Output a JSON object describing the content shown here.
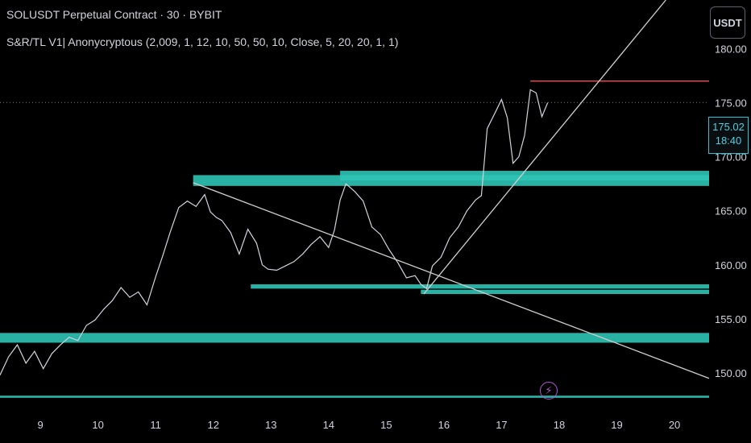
{
  "header": {
    "symbol_line": "SOLUSDT Perpetual Contract · 30 · BYBIT",
    "indicator_line": "S&R/TL V1| Anonycryptous (2,009, 1, 12, 10, 50, 50, 10, Close, 5, 20, 20, 1, 1)"
  },
  "toolbar": {
    "currency_label": "USDT"
  },
  "last_price": {
    "value": "175.02",
    "countdown": "18:40"
  },
  "event_marker": {
    "icon": "lightning-icon"
  },
  "colors": {
    "background": "#000000",
    "price_line": "#d1d4dc",
    "zone": "#2ec4b6",
    "resistance": "#e0525b",
    "trendline": "#cfcfcf",
    "marker": "#b658d8"
  },
  "chart_data": {
    "type": "line",
    "title": "SOLUSDT Perpetual Contract · 30 · BYBIT",
    "x_ticks": [
      {
        "day": 9,
        "label": "9"
      },
      {
        "day": 10,
        "label": "10"
      },
      {
        "day": 11,
        "label": "11"
      },
      {
        "day": 12,
        "label": "12"
      },
      {
        "day": 13,
        "label": "13"
      },
      {
        "day": 14,
        "label": "14"
      },
      {
        "day": 15,
        "label": "15"
      },
      {
        "day": 16,
        "label": "16"
      },
      {
        "day": 17,
        "label": "17"
      },
      {
        "day": 18,
        "label": "18"
      },
      {
        "day": 19,
        "label": "19"
      },
      {
        "day": 20,
        "label": "20"
      }
    ],
    "y_ticks": [
      "150.00",
      "155.00",
      "160.00",
      "165.00",
      "170.00",
      "175.00",
      "180.00"
    ],
    "xlim": [
      8.3,
      20.6
    ],
    "ylim": [
      146.5,
      184.5
    ],
    "series": [
      {
        "values": [
          [
            8.3,
            149.8
          ],
          [
            8.45,
            151.5
          ],
          [
            8.6,
            152.6
          ],
          [
            8.75,
            150.9
          ],
          [
            8.9,
            152.0
          ],
          [
            9.05,
            150.4
          ],
          [
            9.2,
            151.8
          ],
          [
            9.35,
            152.6
          ],
          [
            9.5,
            153.3
          ],
          [
            9.65,
            153.0
          ],
          [
            9.8,
            154.4
          ],
          [
            9.95,
            154.9
          ],
          [
            10.1,
            155.9
          ],
          [
            10.25,
            156.7
          ],
          [
            10.4,
            157.9
          ],
          [
            10.55,
            157.0
          ],
          [
            10.7,
            157.5
          ],
          [
            10.85,
            156.3
          ],
          [
            11.0,
            158.9
          ],
          [
            11.12,
            160.8
          ],
          [
            11.25,
            163.0
          ],
          [
            11.4,
            165.3
          ],
          [
            11.55,
            165.9
          ],
          [
            11.7,
            165.4
          ],
          [
            11.85,
            166.5
          ],
          [
            11.95,
            164.9
          ],
          [
            12.05,
            164.4
          ],
          [
            12.15,
            164.1
          ],
          [
            12.3,
            163.0
          ],
          [
            12.45,
            161.0
          ],
          [
            12.6,
            163.3
          ],
          [
            12.75,
            162.0
          ],
          [
            12.85,
            160.0
          ],
          [
            12.95,
            159.6
          ],
          [
            13.1,
            159.5
          ],
          [
            13.25,
            159.9
          ],
          [
            13.4,
            160.3
          ],
          [
            13.55,
            161.0
          ],
          [
            13.7,
            161.9
          ],
          [
            13.85,
            162.6
          ],
          [
            14.0,
            161.6
          ],
          [
            14.1,
            163.2
          ],
          [
            14.2,
            166.0
          ],
          [
            14.3,
            167.5
          ],
          [
            14.45,
            166.8
          ],
          [
            14.6,
            165.9
          ],
          [
            14.75,
            163.5
          ],
          [
            14.9,
            162.8
          ],
          [
            15.05,
            161.4
          ],
          [
            15.2,
            160.2
          ],
          [
            15.35,
            158.8
          ],
          [
            15.5,
            159.0
          ],
          [
            15.6,
            158.2
          ],
          [
            15.7,
            157.8
          ],
          [
            15.8,
            159.9
          ],
          [
            15.95,
            160.7
          ],
          [
            16.1,
            162.5
          ],
          [
            16.25,
            163.5
          ],
          [
            16.4,
            165.0
          ],
          [
            16.55,
            166.0
          ],
          [
            16.65,
            166.4
          ],
          [
            16.75,
            172.6
          ],
          [
            16.9,
            174.2
          ],
          [
            17.0,
            175.3
          ],
          [
            17.1,
            173.6
          ],
          [
            17.2,
            169.4
          ],
          [
            17.3,
            170.0
          ],
          [
            17.4,
            172.0
          ],
          [
            17.5,
            176.2
          ],
          [
            17.6,
            175.9
          ],
          [
            17.7,
            173.7
          ],
          [
            17.8,
            175.0
          ]
        ]
      }
    ],
    "support_resistance_zones": [
      {
        "x_start": 11.65,
        "x_end": 20.6,
        "low": 167.3,
        "high": 168.3
      },
      {
        "x_start": 14.2,
        "x_end": 20.6,
        "low": 167.8,
        "high": 168.7
      },
      {
        "x_start": 12.65,
        "x_end": 20.6,
        "low": 157.8,
        "high": 158.2
      },
      {
        "x_start": 15.6,
        "x_end": 20.6,
        "low": 157.3,
        "high": 157.7
      },
      {
        "x_start": 8.3,
        "x_end": 20.6,
        "low": 152.8,
        "high": 153.7
      },
      {
        "x_start": 8.3,
        "x_end": 20.6,
        "low": 147.7,
        "high": 147.9
      }
    ],
    "resistance_line": {
      "x_start": 17.5,
      "x_end": 20.6,
      "y": 177.0
    },
    "trendlines": [
      {
        "x1": 11.65,
        "y1": 167.6,
        "x2": 20.6,
        "y2": 149.5
      },
      {
        "x1": 15.65,
        "y1": 157.3,
        "x2": 19.85,
        "y2": 184.5
      }
    ],
    "current_price_dotted": 175.02
  }
}
